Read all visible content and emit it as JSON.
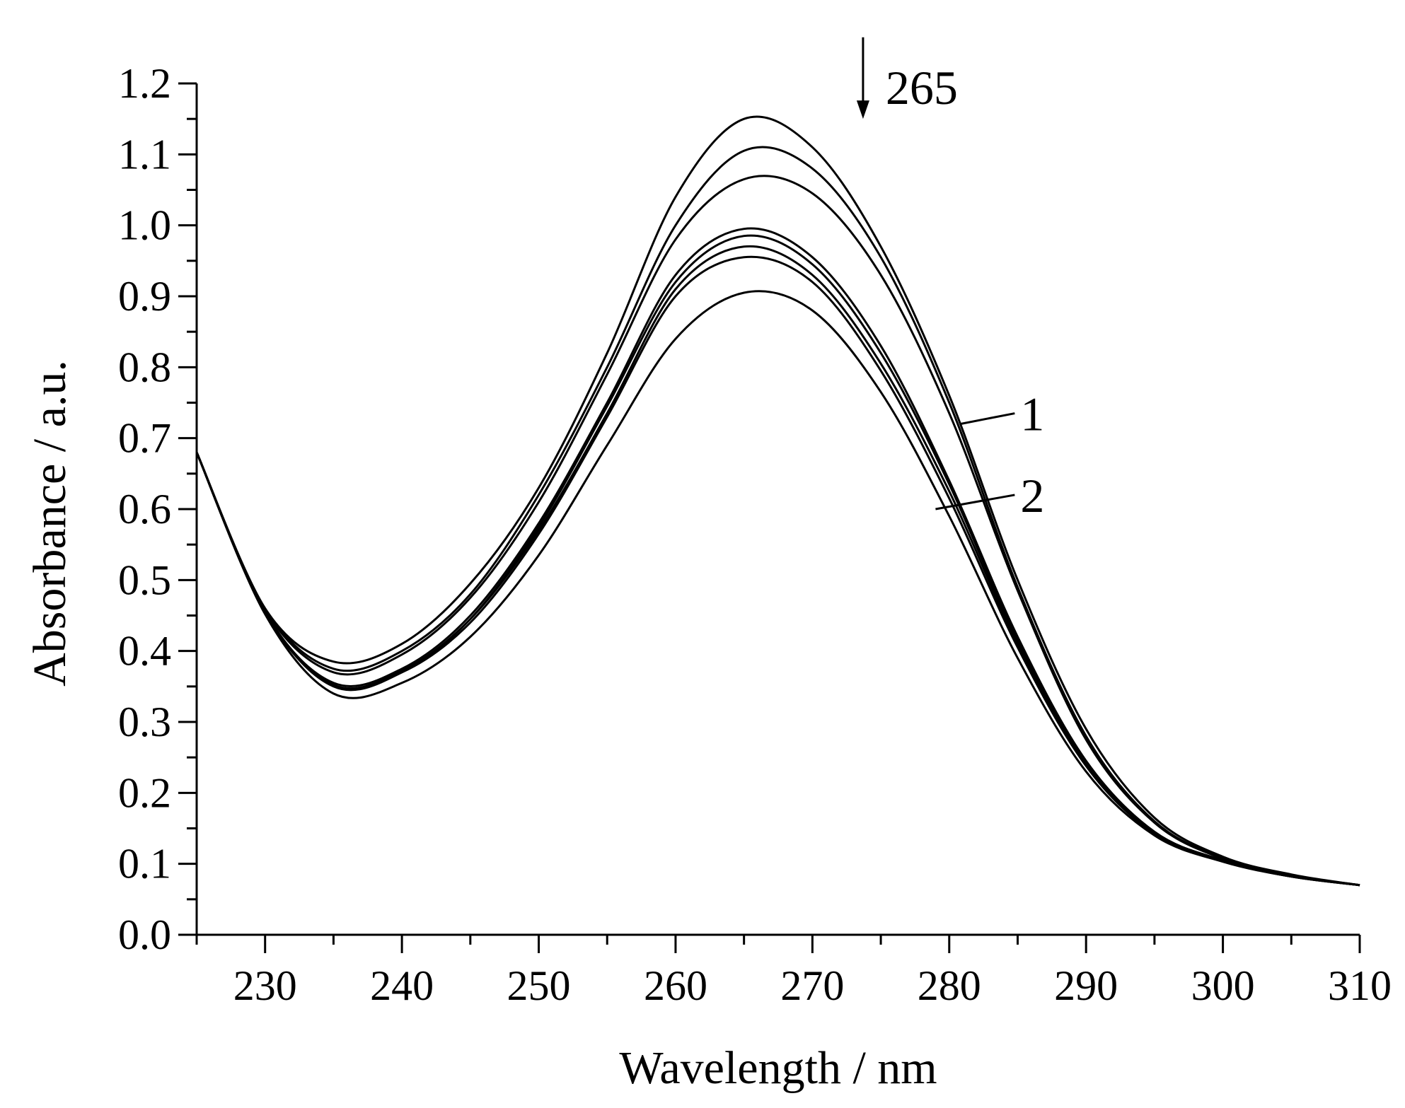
{
  "chart_data": {
    "type": "line",
    "title": "",
    "xlabel": "Wavelength / nm",
    "ylabel": "Absorbance / a.u.",
    "xlim": [
      225,
      310
    ],
    "ylim": [
      0.0,
      1.2
    ],
    "x_ticks": [
      230,
      240,
      250,
      260,
      270,
      280,
      290,
      300,
      310
    ],
    "x_tick_labels": [
      "230",
      "240",
      "250",
      "260",
      "270",
      "280",
      "290",
      "300",
      "310"
    ],
    "y_ticks": [
      0.0,
      0.1,
      0.2,
      0.3,
      0.4,
      0.5,
      0.6,
      0.7,
      0.8,
      0.9,
      1.0,
      1.1,
      1.2
    ],
    "y_tick_labels": [
      "0.0",
      "0.1",
      "0.2",
      "0.3",
      "0.4",
      "0.5",
      "0.6",
      "0.7",
      "0.8",
      "0.9",
      "1.0",
      "1.1",
      "1.2"
    ],
    "grid": false,
    "legend": "none",
    "line_color": "#000000",
    "series": [
      {
        "x": [
          225,
          230,
          235,
          240,
          245,
          250,
          255,
          260,
          265,
          270,
          275,
          280,
          285,
          290,
          295,
          300,
          305,
          310
        ],
        "y": [
          0.68,
          0.46,
          0.385,
          0.41,
          0.495,
          0.63,
          0.82,
          1.04,
          1.15,
          1.11,
          0.97,
          0.76,
          0.5,
          0.29,
          0.165,
          0.11,
          0.085,
          0.07
        ]
      },
      {
        "x": [
          225,
          230,
          235,
          240,
          245,
          250,
          255,
          260,
          265,
          270,
          275,
          280,
          285,
          290,
          295,
          300,
          305,
          310
        ],
        "y": [
          0.68,
          0.46,
          0.375,
          0.4,
          0.48,
          0.62,
          0.8,
          1.0,
          1.105,
          1.08,
          0.955,
          0.75,
          0.49,
          0.28,
          0.16,
          0.108,
          0.084,
          0.07
        ]
      },
      {
        "x": [
          225,
          230,
          235,
          240,
          245,
          250,
          255,
          260,
          265,
          270,
          275,
          280,
          285,
          290,
          295,
          300,
          305,
          310
        ],
        "y": [
          0.68,
          0.458,
          0.37,
          0.395,
          0.475,
          0.61,
          0.79,
          0.98,
          1.065,
          1.045,
          0.93,
          0.735,
          0.485,
          0.275,
          0.158,
          0.107,
          0.083,
          0.07
        ]
      },
      {
        "x": [
          225,
          230,
          235,
          240,
          245,
          250,
          255,
          260,
          265,
          270,
          275,
          280,
          285,
          290,
          295,
          300,
          305,
          310
        ],
        "y": [
          0.68,
          0.455,
          0.355,
          0.375,
          0.45,
          0.58,
          0.75,
          0.93,
          0.995,
          0.955,
          0.83,
          0.64,
          0.42,
          0.245,
          0.145,
          0.105,
          0.083,
          0.07
        ]
      },
      {
        "x": [
          225,
          230,
          235,
          240,
          245,
          250,
          255,
          260,
          265,
          270,
          275,
          280,
          285,
          290,
          295,
          300,
          305,
          310
        ],
        "y": [
          0.68,
          0.455,
          0.35,
          0.37,
          0.445,
          0.575,
          0.745,
          0.92,
          0.985,
          0.945,
          0.82,
          0.635,
          0.415,
          0.245,
          0.145,
          0.105,
          0.083,
          0.07
        ]
      },
      {
        "x": [
          225,
          230,
          235,
          240,
          245,
          250,
          255,
          260,
          265,
          270,
          275,
          280,
          285,
          290,
          295,
          300,
          305,
          310
        ],
        "y": [
          0.68,
          0.454,
          0.352,
          0.372,
          0.445,
          0.57,
          0.735,
          0.91,
          0.97,
          0.93,
          0.805,
          0.625,
          0.41,
          0.24,
          0.143,
          0.104,
          0.082,
          0.07
        ]
      },
      {
        "x": [
          225,
          230,
          235,
          240,
          245,
          250,
          255,
          260,
          265,
          270,
          275,
          280,
          285,
          290,
          295,
          300,
          305,
          310
        ],
        "y": [
          0.68,
          0.454,
          0.352,
          0.37,
          0.44,
          0.565,
          0.73,
          0.9,
          0.955,
          0.92,
          0.795,
          0.615,
          0.405,
          0.238,
          0.142,
          0.104,
          0.082,
          0.07
        ]
      },
      {
        "x": [
          225,
          230,
          235,
          240,
          245,
          250,
          255,
          260,
          265,
          270,
          275,
          280,
          285,
          290,
          295,
          300,
          305,
          310
        ],
        "y": [
          0.68,
          0.452,
          0.34,
          0.355,
          0.42,
          0.535,
          0.69,
          0.84,
          0.905,
          0.88,
          0.765,
          0.59,
          0.39,
          0.23,
          0.14,
          0.103,
          0.082,
          0.07
        ]
      }
    ],
    "annotations": [
      {
        "text": "265",
        "type": "arrow-down",
        "x": 273.7,
        "y_from": 1.265,
        "y_to": 1.15
      },
      {
        "text": "1",
        "type": "leader",
        "target_x": 280.8,
        "target_y": 0.72,
        "label_x": 285.2,
        "label_y": 0.735
      },
      {
        "text": "2",
        "type": "leader",
        "target_x": 279.0,
        "target_y": 0.6,
        "label_x": 285.2,
        "label_y": 0.62
      }
    ]
  }
}
